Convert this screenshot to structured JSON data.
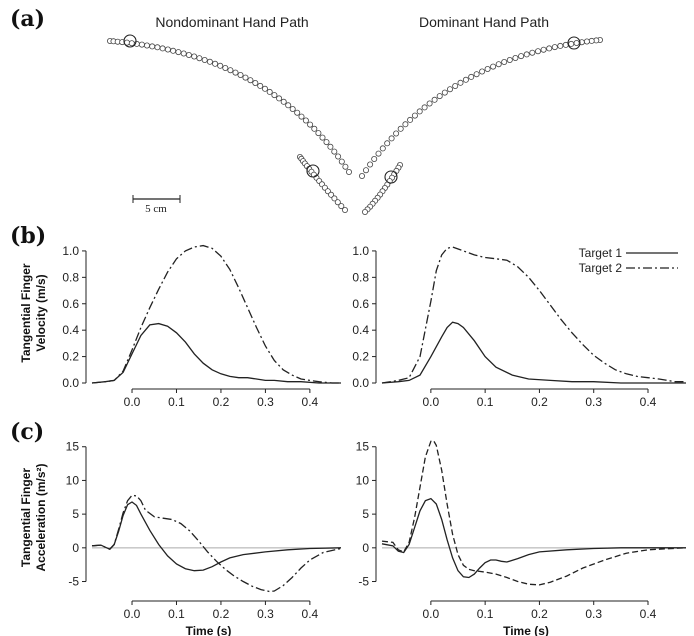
{
  "panel_a": {
    "letter": "(a)",
    "left_title": "Nondominant Hand Path",
    "right_title": "Dominant Hand Path",
    "scale_label": "5 cm"
  },
  "panel_b": {
    "letter": "(b)"
  },
  "panel_c": {
    "letter": "(c)"
  },
  "colors": {
    "line": "#222222",
    "zero_line": "#aaaaaa",
    "marker": "#444444"
  },
  "chart_data": [
    {
      "id": "b-left",
      "type": "line",
      "ylabel": [
        "Tangential Finger",
        "Velocity (m/s)"
      ],
      "xlabel": "",
      "xlim": [
        -0.09,
        0.47
      ],
      "ylim": [
        0,
        1.06
      ],
      "xticks": [
        0.0,
        0.1,
        0.2,
        0.3,
        0.4
      ],
      "yticks": [
        0.0,
        0.2,
        0.4,
        0.6,
        0.8,
        1.0
      ],
      "zero_line": false,
      "series": [
        {
          "style": "solid",
          "x": [
            -0.09,
            -0.06,
            -0.04,
            -0.02,
            0.0,
            0.02,
            0.04,
            0.06,
            0.08,
            0.1,
            0.12,
            0.14,
            0.16,
            0.18,
            0.2,
            0.22,
            0.24,
            0.26,
            0.28,
            0.3,
            0.32,
            0.35,
            0.38,
            0.42,
            0.47
          ],
          "y": [
            0.0,
            0.01,
            0.02,
            0.08,
            0.22,
            0.36,
            0.44,
            0.45,
            0.43,
            0.38,
            0.31,
            0.22,
            0.15,
            0.1,
            0.07,
            0.05,
            0.04,
            0.04,
            0.03,
            0.02,
            0.02,
            0.01,
            0.01,
            0.0,
            0.0
          ]
        },
        {
          "style": "dashdot",
          "x": [
            -0.09,
            -0.06,
            -0.04,
            -0.02,
            0.0,
            0.02,
            0.04,
            0.06,
            0.08,
            0.1,
            0.12,
            0.14,
            0.16,
            0.18,
            0.2,
            0.22,
            0.24,
            0.26,
            0.28,
            0.3,
            0.32,
            0.34,
            0.36,
            0.38,
            0.4,
            0.42,
            0.45,
            0.47
          ],
          "y": [
            0.0,
            0.01,
            0.02,
            0.09,
            0.25,
            0.42,
            0.57,
            0.71,
            0.84,
            0.94,
            1.0,
            1.03,
            1.04,
            1.02,
            0.96,
            0.86,
            0.72,
            0.57,
            0.42,
            0.28,
            0.17,
            0.1,
            0.06,
            0.03,
            0.02,
            0.01,
            0.0,
            0.0
          ]
        }
      ]
    },
    {
      "id": "b-right",
      "type": "line",
      "ylabel": null,
      "xlabel": "",
      "xlim": [
        -0.09,
        0.47
      ],
      "ylim": [
        0,
        1.06
      ],
      "xticks": [
        0.0,
        0.1,
        0.2,
        0.3,
        0.4
      ],
      "yticks": [
        0.0,
        0.2,
        0.4,
        0.6,
        0.8,
        1.0
      ],
      "zero_line": false,
      "legend": {
        "position": "top-right",
        "entries": [
          {
            "label": "Target 1",
            "style": "solid"
          },
          {
            "label": "Target 2",
            "style": "dashdot"
          }
        ]
      },
      "series": [
        {
          "style": "solid",
          "x": [
            -0.09,
            -0.06,
            -0.04,
            -0.02,
            0.0,
            0.02,
            0.03,
            0.04,
            0.05,
            0.06,
            0.08,
            0.1,
            0.12,
            0.15,
            0.18,
            0.22,
            0.26,
            0.3,
            0.35,
            0.4,
            0.47
          ],
          "y": [
            0.0,
            0.01,
            0.02,
            0.06,
            0.2,
            0.35,
            0.42,
            0.46,
            0.45,
            0.42,
            0.32,
            0.2,
            0.12,
            0.06,
            0.03,
            0.02,
            0.01,
            0.01,
            0.0,
            0.0,
            0.0
          ]
        },
        {
          "style": "dashdot",
          "x": [
            -0.09,
            -0.06,
            -0.04,
            -0.02,
            0.0,
            0.01,
            0.02,
            0.03,
            0.04,
            0.06,
            0.08,
            0.1,
            0.12,
            0.14,
            0.16,
            0.18,
            0.2,
            0.22,
            0.24,
            0.26,
            0.28,
            0.3,
            0.32,
            0.34,
            0.36,
            0.38,
            0.4,
            0.42,
            0.45,
            0.47
          ],
          "y": [
            0.0,
            0.02,
            0.04,
            0.2,
            0.62,
            0.85,
            0.97,
            1.02,
            1.03,
            1.0,
            0.97,
            0.95,
            0.94,
            0.93,
            0.88,
            0.8,
            0.7,
            0.59,
            0.48,
            0.38,
            0.29,
            0.21,
            0.15,
            0.1,
            0.07,
            0.05,
            0.04,
            0.03,
            0.01,
            0.01
          ]
        }
      ]
    },
    {
      "id": "c-left",
      "type": "line",
      "ylabel": [
        "Tangential Finger",
        "Acceleration (m/s²)"
      ],
      "xlabel": "Time (s)",
      "xlim": [
        -0.09,
        0.47
      ],
      "ylim": [
        -7,
        16
      ],
      "xticks": [
        0.0,
        0.1,
        0.2,
        0.3,
        0.4
      ],
      "yticks": [
        -5,
        0,
        5,
        10,
        15
      ],
      "zero_line": true,
      "series": [
        {
          "style": "solid",
          "x": [
            -0.09,
            -0.07,
            -0.06,
            -0.05,
            -0.04,
            -0.03,
            -0.02,
            -0.01,
            0.0,
            0.01,
            0.02,
            0.04,
            0.06,
            0.08,
            0.1,
            0.12,
            0.14,
            0.16,
            0.18,
            0.2,
            0.22,
            0.25,
            0.3,
            0.35,
            0.4,
            0.47
          ],
          "y": [
            0.3,
            0.4,
            0.1,
            -0.2,
            0.5,
            2.5,
            4.8,
            6.4,
            6.8,
            6.3,
            5.0,
            2.6,
            0.5,
            -1.2,
            -2.4,
            -3.1,
            -3.4,
            -3.3,
            -2.8,
            -2.1,
            -1.5,
            -1.0,
            -0.6,
            -0.3,
            -0.1,
            0.0
          ]
        },
        {
          "style": "dashdot",
          "x": [
            -0.09,
            -0.07,
            -0.06,
            -0.05,
            -0.04,
            -0.03,
            -0.02,
            -0.01,
            0.0,
            0.01,
            0.02,
            0.03,
            0.05,
            0.07,
            0.09,
            0.11,
            0.13,
            0.15,
            0.17,
            0.19,
            0.21,
            0.23,
            0.25,
            0.27,
            0.29,
            0.31,
            0.32,
            0.34,
            0.36,
            0.38,
            0.4,
            0.43,
            0.47
          ],
          "y": [
            0.3,
            0.4,
            0.1,
            -0.2,
            0.5,
            2.8,
            5.2,
            7.0,
            7.8,
            7.7,
            7.0,
            5.6,
            4.6,
            4.4,
            4.2,
            3.6,
            2.5,
            1.0,
            -0.6,
            -2.0,
            -3.2,
            -4.2,
            -5.0,
            -5.7,
            -6.2,
            -6.5,
            -6.4,
            -5.6,
            -4.4,
            -3.0,
            -1.8,
            -0.7,
            -0.1
          ]
        }
      ]
    },
    {
      "id": "c-right",
      "type": "line",
      "ylabel": null,
      "xlabel": "Time (s)",
      "xlim": [
        -0.09,
        0.47
      ],
      "ylim": [
        -7,
        16
      ],
      "xticks": [
        0.0,
        0.1,
        0.2,
        0.3,
        0.4
      ],
      "yticks": [
        -5,
        0,
        5,
        10,
        15
      ],
      "zero_line": true,
      "series": [
        {
          "style": "solid",
          "x": [
            -0.09,
            -0.07,
            -0.06,
            -0.05,
            -0.04,
            -0.03,
            -0.02,
            -0.01,
            0.0,
            0.01,
            0.02,
            0.03,
            0.04,
            0.05,
            0.06,
            0.07,
            0.08,
            0.09,
            0.1,
            0.11,
            0.12,
            0.13,
            0.14,
            0.16,
            0.18,
            0.2,
            0.25,
            0.3,
            0.35,
            0.4,
            0.47
          ],
          "y": [
            0.6,
            0.3,
            -0.5,
            -0.7,
            0.5,
            3.0,
            5.5,
            7.0,
            7.3,
            6.5,
            4.2,
            1.2,
            -1.5,
            -3.4,
            -4.3,
            -4.4,
            -3.9,
            -3.0,
            -2.2,
            -1.8,
            -1.8,
            -2.0,
            -2.1,
            -1.6,
            -1.0,
            -0.6,
            -0.3,
            -0.1,
            0.0,
            0.0,
            0.0
          ]
        },
        {
          "style": "dashed",
          "x": [
            -0.09,
            -0.07,
            -0.06,
            -0.05,
            -0.04,
            -0.03,
            -0.02,
            -0.01,
            0.0,
            0.005,
            0.01,
            0.02,
            0.03,
            0.04,
            0.05,
            0.06,
            0.07,
            0.08,
            0.1,
            0.12,
            0.14,
            0.16,
            0.18,
            0.2,
            0.22,
            0.25,
            0.28,
            0.32,
            0.36,
            0.4,
            0.47
          ],
          "y": [
            1.0,
            0.8,
            -0.3,
            -0.6,
            0.8,
            4.5,
            9.0,
            13.5,
            15.8,
            15.9,
            15.2,
            11.5,
            6.5,
            2.0,
            -1.0,
            -2.6,
            -3.2,
            -3.4,
            -3.6,
            -3.9,
            -4.4,
            -5.0,
            -5.4,
            -5.5,
            -5.1,
            -4.2,
            -3.0,
            -1.8,
            -0.8,
            -0.3,
            0.0
          ]
        }
      ]
    }
  ],
  "hand_paths": {
    "nondominant": {
      "path1": {
        "from": [
          110,
          41
        ],
        "to": [
          349,
          172
        ],
        "mid": [
          250,
          80
        ],
        "markers": 52
      },
      "path2": {
        "from": [
          300,
          157
        ],
        "to": [
          345,
          210
        ],
        "mid": [
          320,
          182
        ],
        "markers": 18
      },
      "ring1": [
        130,
        41
      ],
      "ring2": [
        313,
        171
      ]
    },
    "dominant": {
      "path1": {
        "from": [
          600,
          40
        ],
        "to": [
          362,
          176
        ],
        "mid": [
          462,
          82
        ],
        "markers": 48
      },
      "path2": {
        "from": [
          400,
          165
        ],
        "to": [
          365,
          212
        ],
        "mid": [
          382,
          192
        ],
        "markers": 16
      },
      "ring1": [
        574,
        43
      ],
      "ring2": [
        391,
        177
      ]
    }
  }
}
